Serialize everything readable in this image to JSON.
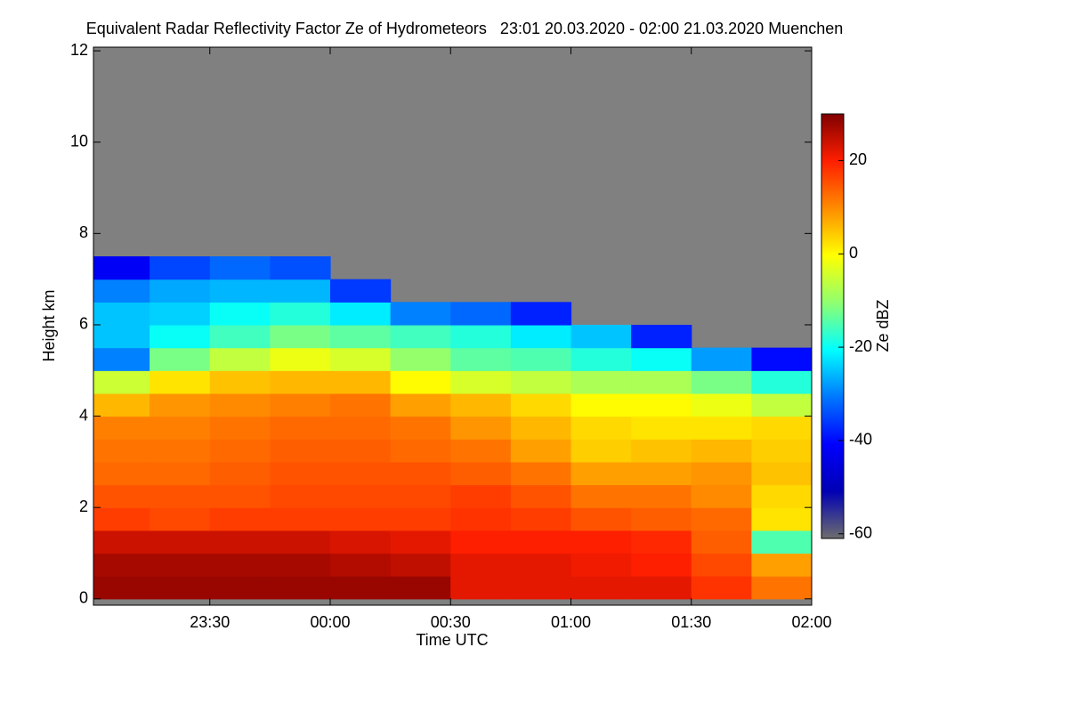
{
  "chart_data": {
    "type": "heatmap",
    "title": "Equivalent Radar Reflectivity Factor Ze of Hydrometeors   23:01 20.03.2020 - 02:00 21.03.2020 Muenchen",
    "x_label": "Time UTC",
    "y_label": "Height km",
    "colorbar_label": "Ze dBZ",
    "xlim": [
      1,
      180
    ],
    "xticks": [
      {
        "value": 30,
        "label": "23:30"
      },
      {
        "value": 60,
        "label": "00:00"
      },
      {
        "value": 90,
        "label": "00:30"
      },
      {
        "value": 120,
        "label": "01:00"
      },
      {
        "value": 150,
        "label": "01:30"
      },
      {
        "value": 180,
        "label": "02:00"
      }
    ],
    "ylim": [
      -0.14,
      12.08
    ],
    "yticks": [
      0,
      2,
      4,
      6,
      8,
      10,
      12
    ],
    "clim": [
      -61,
      30
    ],
    "cticks": [
      20,
      0,
      -20,
      -40,
      -60
    ],
    "colormap": [
      "#6e6e6e",
      "#0000b4",
      "#0000ff",
      "#0078ff",
      "#00ffff",
      "#90ff70",
      "#ffff00",
      "#ff8c00",
      "#ff1e00",
      "#800000"
    ],
    "no_data_color": "#808080",
    "x_edges": [
      1,
      15,
      30,
      45,
      60,
      75,
      90,
      105,
      120,
      135,
      150,
      165,
      180
    ],
    "y_edges": [
      0,
      0.5,
      1,
      1.5,
      2,
      2.5,
      3,
      3.5,
      4,
      4.5,
      5,
      5.5,
      6,
      6.5,
      7,
      7.5
    ],
    "z": [
      [
        28,
        28,
        28,
        28,
        28,
        28,
        22,
        22,
        22,
        22,
        18,
        12
      ],
      [
        27,
        27,
        27,
        27,
        26,
        25,
        22,
        22,
        21,
        20,
        16,
        8
      ],
      [
        24,
        24,
        24,
        24,
        23,
        22,
        20,
        20,
        20,
        19,
        14,
        -15
      ],
      [
        17,
        16,
        17,
        17,
        17,
        17,
        18,
        17,
        15,
        14,
        13,
        2
      ],
      [
        15,
        15,
        15,
        16,
        16,
        16,
        17,
        15,
        12,
        12,
        10,
        3
      ],
      [
        13,
        13,
        14,
        15,
        15,
        15,
        14,
        12,
        8,
        8,
        9,
        5
      ],
      [
        12,
        12,
        13,
        14,
        14,
        13,
        12,
        8,
        4,
        5,
        6,
        4
      ],
      [
        11,
        11,
        12,
        13,
        13,
        12,
        9,
        6,
        3,
        2,
        2,
        3
      ],
      [
        6,
        9,
        10,
        11,
        12,
        8,
        6,
        3,
        0,
        0,
        -2,
        -6
      ],
      [
        -5,
        2,
        5,
        6,
        6,
        0,
        -4,
        -6,
        -8,
        -8,
        -12,
        -18
      ],
      [
        -30,
        -12,
        -6,
        -2,
        -4,
        -10,
        -14,
        -15,
        -18,
        -20,
        -28,
        -40
      ],
      [
        -25,
        -20,
        -16,
        -12,
        -14,
        -16,
        -18,
        -22,
        -25,
        -38,
        null,
        null
      ],
      [
        -25,
        -24,
        -20,
        -18,
        -22,
        -30,
        -32,
        -38,
        null,
        null,
        null,
        null
      ],
      [
        -30,
        -27,
        -26,
        -26,
        -36,
        null,
        null,
        null,
        null,
        null,
        null,
        null
      ],
      [
        -42,
        -35,
        -32,
        -34,
        null,
        null,
        null,
        null,
        null,
        null,
        null,
        null
      ]
    ]
  }
}
